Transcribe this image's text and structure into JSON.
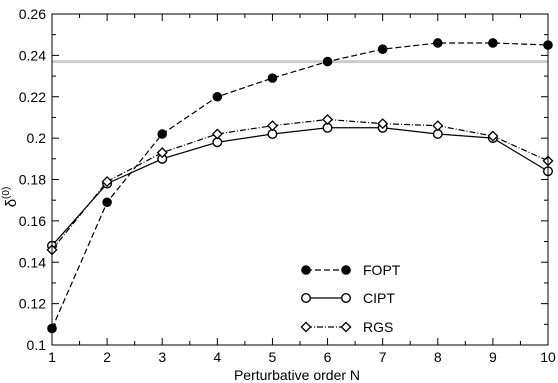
{
  "chart_data": {
    "type": "line",
    "xlabel": "Perturbative order N",
    "ylabel": "δ",
    "ylabel_superscript": "(0)",
    "xlim": [
      1,
      10
    ],
    "ylim": [
      0.1,
      0.26
    ],
    "x_ticks": [
      "1",
      "2",
      "3",
      "4",
      "5",
      "6",
      "7",
      "8",
      "9",
      "10"
    ],
    "y_ticks": [
      "0.1",
      "0.12",
      "0.14",
      "0.16",
      "0.18",
      "0.2",
      "0.22",
      "0.24",
      "0.26"
    ],
    "grid": false,
    "legend_position": "lower-center",
    "reference_line": {
      "y": 0.237,
      "color": "#cccccc"
    },
    "x": [
      1,
      2,
      3,
      4,
      5,
      6,
      7,
      8,
      9,
      10
    ],
    "series": [
      {
        "name": "FOPT",
        "values": [
          0.108,
          0.169,
          0.202,
          0.22,
          0.229,
          0.237,
          0.243,
          0.246,
          0.246,
          0.245
        ],
        "line_style": "dashed",
        "marker": "filled-circle"
      },
      {
        "name": "CIPT",
        "values": [
          0.148,
          0.178,
          0.19,
          0.198,
          0.202,
          0.205,
          0.205,
          0.202,
          0.2,
          0.184
        ],
        "line_style": "solid",
        "marker": "open-circle"
      },
      {
        "name": "RGS",
        "values": [
          0.146,
          0.179,
          0.193,
          0.202,
          0.206,
          0.209,
          0.207,
          0.206,
          0.201,
          0.189
        ],
        "line_style": "dash-dot",
        "marker": "open-diamond"
      }
    ]
  }
}
